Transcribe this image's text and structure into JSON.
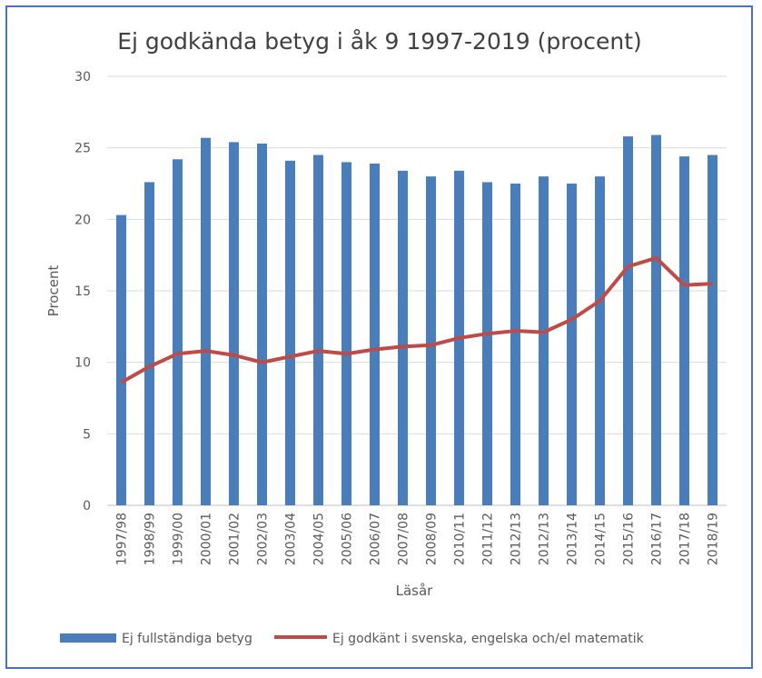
{
  "chart_data": {
    "type": "bar",
    "title": "Ej godkända betyg i åk 9 1997-2019 (procent)",
    "xlabel": "Läsår",
    "ylabel": "Procent",
    "ylim": [
      0,
      30
    ],
    "yticks": [
      "0",
      "5",
      "10",
      "15",
      "20",
      "25",
      "30"
    ],
    "grid": true,
    "legend_position": "bottom",
    "categories": [
      "1997/98",
      "1998/99",
      "1999/00",
      "2000/01",
      "2001/02",
      "2002/03",
      "2003/04",
      "2004/05",
      "2005/06",
      "2006/07",
      "2007/08",
      "2008/09",
      "2010/11",
      "2011/12",
      "2012/13",
      "2012/13",
      "2013/14",
      "2014/15",
      "2015/16",
      "2016/17",
      "2017/18",
      "2018/19"
    ],
    "series": [
      {
        "name": "Ej fullständiga betyg",
        "type": "bar",
        "color": "#4a7ebb",
        "values": [
          20.3,
          22.6,
          24.2,
          25.7,
          25.4,
          25.3,
          24.1,
          24.5,
          24.0,
          23.9,
          23.4,
          23.0,
          23.4,
          22.6,
          22.5,
          23.0,
          22.5,
          23.0,
          25.8,
          25.9,
          24.4,
          24.5
        ]
      },
      {
        "name": "Ej godkänt i svenska, engelska och/el matematik",
        "type": "line",
        "color": "#be4b48",
        "values": [
          8.6,
          9.7,
          10.6,
          10.8,
          10.5,
          10.0,
          10.4,
          10.8,
          10.6,
          10.9,
          11.1,
          11.2,
          11.7,
          12.0,
          12.2,
          12.1,
          13.0,
          14.3,
          16.7,
          17.3,
          15.4,
          15.5
        ]
      }
    ]
  }
}
